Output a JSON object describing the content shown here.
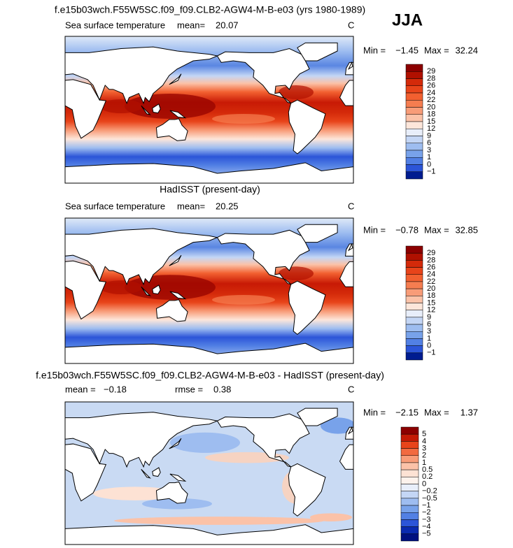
{
  "season": "JJA",
  "panels": [
    {
      "title": "f.e15b03wch.F55W5SC.f09_f09.CLB2-AGW4-M-B-e03 (yrs 1980-1989)",
      "variable": "Sea surface temperature",
      "stats": [
        {
          "label": "mean=",
          "value": "20.07"
        }
      ],
      "units": "C",
      "min_label": "Min =",
      "min": "−1.45",
      "max_label": "Max =",
      "max": "32.24",
      "colorbar": {
        "labels": [
          29,
          28,
          26,
          24,
          22,
          20,
          18,
          15,
          12,
          9,
          6,
          3,
          1,
          0,
          {
            "value": -1,
            "label": "−1"
          }
        ],
        "colors": [
          "#8c0000",
          "#b01000",
          "#d42a0a",
          "#e8441a",
          "#f26030",
          "#f57d50",
          "#f89c78",
          "#fbc2a8",
          "#fde6da",
          "#e8eefa",
          "#c4d6f5",
          "#9ebdf0",
          "#78a2ea",
          "#5280e4",
          "#2c55d8",
          "#001c90"
        ]
      }
    },
    {
      "title": "HadISST (present-day)",
      "variable": "Sea surface temperature",
      "stats": [
        {
          "label": "mean=",
          "value": "20.25"
        }
      ],
      "units": "C",
      "min_label": "Min =",
      "min": "−0.78",
      "max_label": "Max =",
      "max": "32.85",
      "colorbar": {
        "labels": [
          29,
          28,
          26,
          24,
          22,
          20,
          18,
          15,
          12,
          9,
          6,
          3,
          1,
          0,
          {
            "value": -1,
            "label": "−1"
          }
        ],
        "colors": [
          "#8c0000",
          "#b01000",
          "#d42a0a",
          "#e8441a",
          "#f26030",
          "#f57d50",
          "#f89c78",
          "#fbc2a8",
          "#fde6da",
          "#e8eefa",
          "#c4d6f5",
          "#9ebdf0",
          "#78a2ea",
          "#5280e4",
          "#2c55d8",
          "#001c90"
        ]
      }
    },
    {
      "title": "f.e15b03wch.F55W5SC.f09_f09.CLB2-AGW4-M-B-e03 - HadISST (present-day)",
      "stats": [
        {
          "label": "mean =",
          "value": "−0.18"
        },
        {
          "label": "rmse =",
          "value": "0.38"
        }
      ],
      "units": "C",
      "min_label": "Min =",
      "min": "−2.15",
      "max_label": "Max =",
      "max": "1.37",
      "colorbar": {
        "labels": [
          5,
          4,
          3,
          2,
          1,
          0.5,
          0.2,
          0,
          {
            "value": -0.2,
            "label": "−0.2"
          },
          {
            "value": -0.5,
            "label": "−0.5"
          },
          {
            "value": -1,
            "label": "−1"
          },
          {
            "value": -2,
            "label": "−2"
          },
          {
            "value": -3,
            "label": "−3"
          },
          {
            "value": -4,
            "label": "−4"
          },
          {
            "value": -5,
            "label": "−5"
          }
        ],
        "colors": [
          "#8c0000",
          "#c41a05",
          "#e8441a",
          "#f26a40",
          "#f89c78",
          "#fbc2a8",
          "#fde2d4",
          "#fdf2ec",
          "#e8eefa",
          "#c4d6f5",
          "#9ebdf0",
          "#78a2ea",
          "#5280e4",
          "#2c55d8",
          "#0a2ab0",
          "#001080"
        ]
      }
    }
  ]
}
